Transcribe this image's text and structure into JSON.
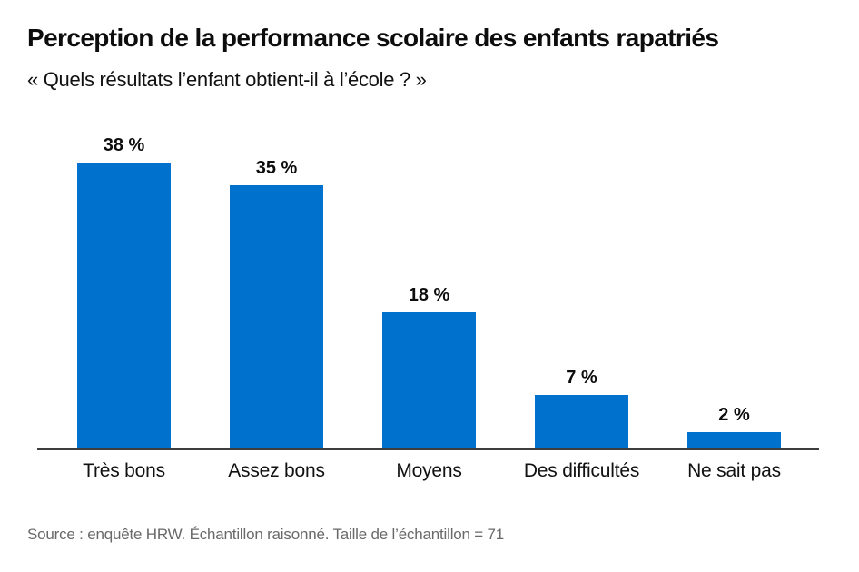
{
  "header": {
    "title": "Perception de la performance scolaire des enfants rapatriés",
    "subtitle": "« Quels résultats l’enfant obtient-il à l’école ? »"
  },
  "chart_data": {
    "type": "bar",
    "title": "Perception de la performance scolaire des enfants rapatriés",
    "subtitle": "« Quels résultats l’enfant obtient-il à l’école ? »",
    "categories": [
      "Très bons",
      "Assez bons",
      "Moyens",
      "Des difficultés",
      "Ne sait pas"
    ],
    "values": [
      38,
      35,
      18,
      7,
      2
    ],
    "value_labels": [
      "38 %",
      "35 %",
      "18 %",
      "7 %",
      "2 %"
    ],
    "ylim": [
      0,
      40
    ],
    "grid": false,
    "legend": "none",
    "bar_color": "#0072ce",
    "axis_color": "#3d3d3d"
  },
  "footer": {
    "source": "Source : enquête HRW. Échantillon raisonné. Taille de l’échantillon = 71"
  }
}
